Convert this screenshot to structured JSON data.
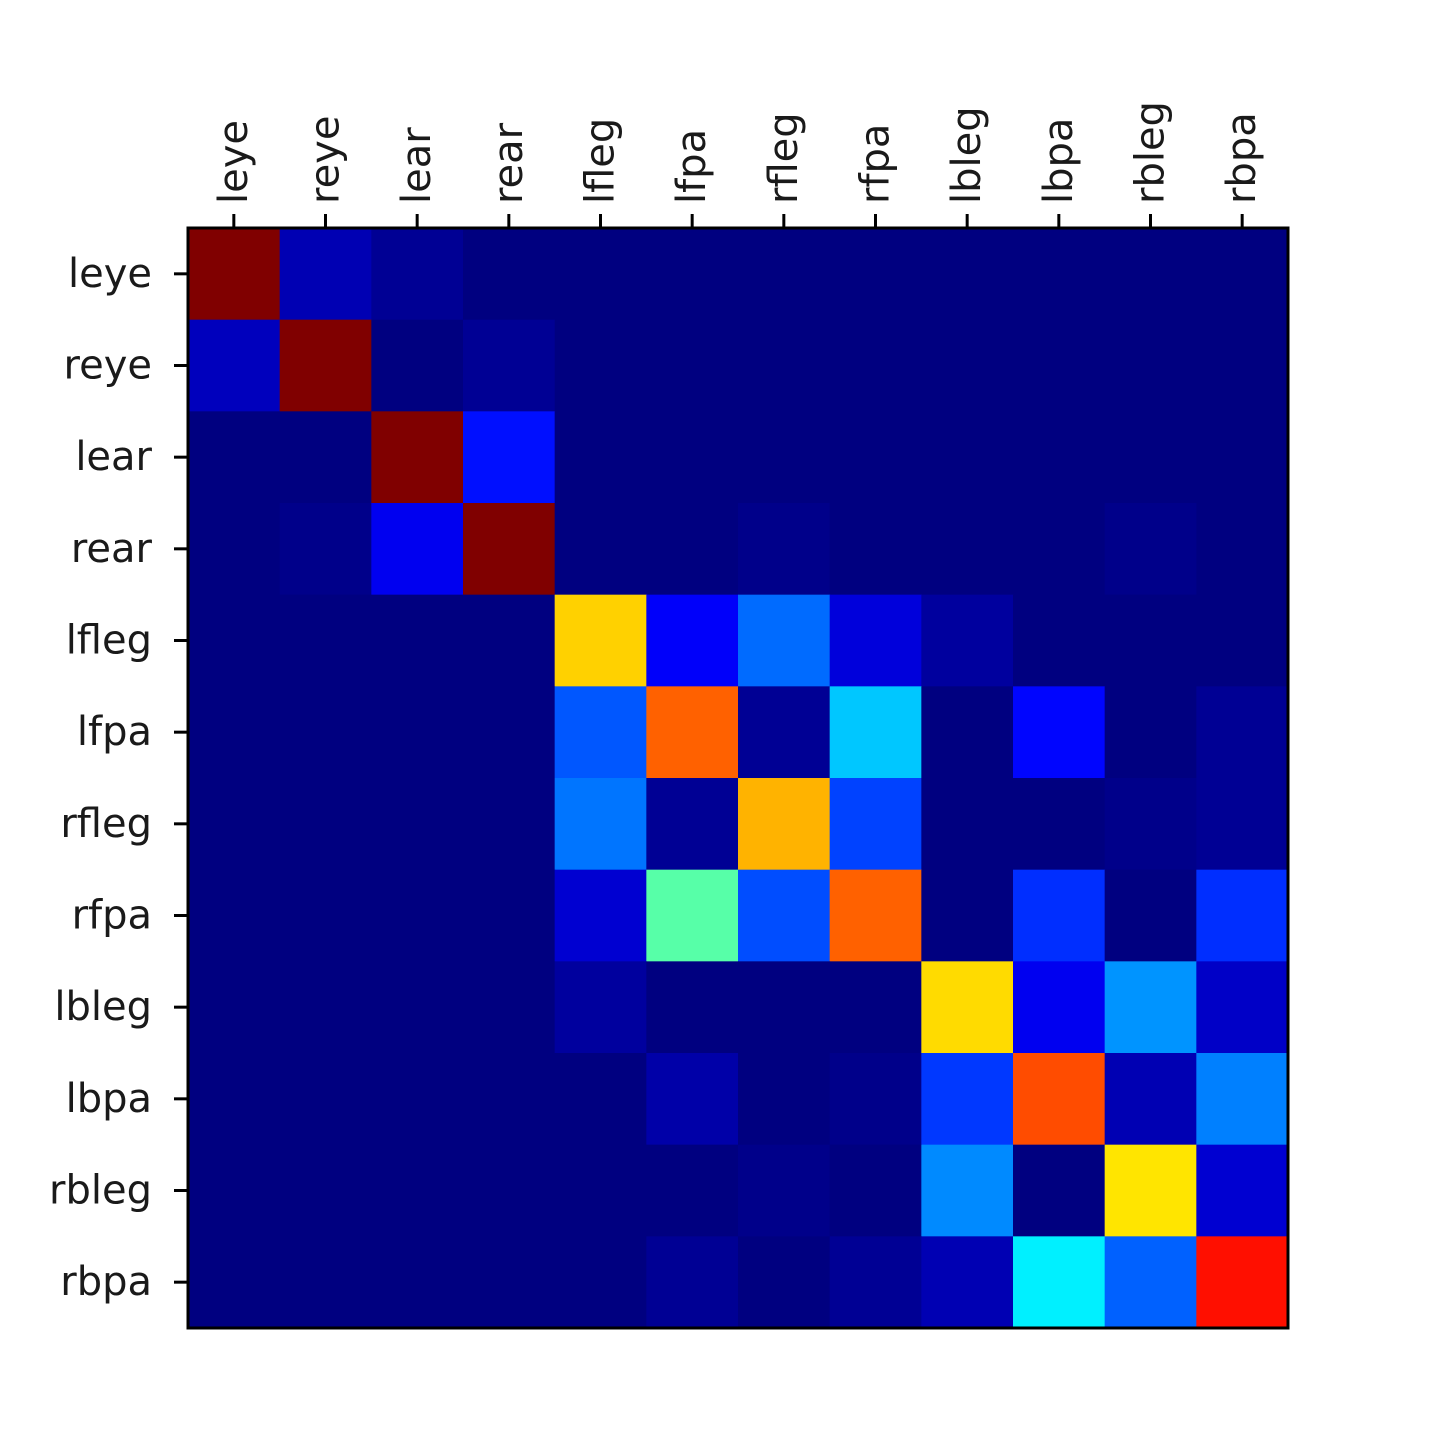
{
  "chart_data": {
    "type": "heatmap",
    "title": "",
    "xlabel": "",
    "ylabel": "",
    "colormap": "jet",
    "value_range": [
      0,
      1
    ],
    "x_axis_position": "top",
    "grid": false,
    "legend": "none",
    "x_labels": [
      "leye",
      "reye",
      "lear",
      "rear",
      "lfleg",
      "lfpa",
      "rfleg",
      "rfpa",
      "lbleg",
      "lbpa",
      "rbleg",
      "rbpa"
    ],
    "y_labels": [
      "leye",
      "reye",
      "lear",
      "rear",
      "lfleg",
      "lfpa",
      "rfleg",
      "rfpa",
      "lbleg",
      "lbpa",
      "rbleg",
      "rbpa"
    ],
    "values": [
      [
        1.0,
        0.05,
        0.02,
        0.0,
        0.0,
        0.0,
        0.0,
        0.0,
        0.0,
        0.0,
        0.0,
        0.0
      ],
      [
        0.06,
        1.0,
        0.0,
        0.02,
        0.0,
        0.0,
        0.0,
        0.0,
        0.0,
        0.0,
        0.0,
        0.0
      ],
      [
        0.0,
        0.0,
        1.0,
        0.14,
        0.0,
        0.0,
        0.0,
        0.0,
        0.0,
        0.0,
        0.0,
        0.0
      ],
      [
        0.0,
        0.01,
        0.11,
        1.0,
        0.0,
        0.0,
        0.01,
        0.0,
        0.0,
        0.0,
        0.01,
        0.0
      ],
      [
        0.0,
        0.0,
        0.0,
        0.0,
        0.67,
        0.12,
        0.23,
        0.09,
        0.03,
        0.0,
        0.0,
        0.0
      ],
      [
        0.0,
        0.0,
        0.0,
        0.0,
        0.21,
        0.78,
        0.02,
        0.32,
        0.0,
        0.13,
        0.0,
        0.02
      ],
      [
        0.0,
        0.0,
        0.0,
        0.0,
        0.24,
        0.02,
        0.7,
        0.19,
        0.0,
        0.0,
        0.01,
        0.02
      ],
      [
        0.0,
        0.0,
        0.0,
        0.0,
        0.08,
        0.46,
        0.2,
        0.78,
        0.0,
        0.17,
        0.0,
        0.17
      ],
      [
        0.0,
        0.0,
        0.0,
        0.0,
        0.03,
        0.0,
        0.0,
        0.0,
        0.66,
        0.11,
        0.27,
        0.07
      ],
      [
        0.0,
        0.0,
        0.0,
        0.0,
        0.0,
        0.04,
        0.0,
        0.01,
        0.18,
        0.8,
        0.05,
        0.25
      ],
      [
        0.0,
        0.0,
        0.0,
        0.0,
        0.0,
        0.0,
        0.01,
        0.0,
        0.26,
        0.0,
        0.65,
        0.08
      ],
      [
        0.0,
        0.0,
        0.0,
        0.0,
        0.0,
        0.02,
        0.0,
        0.02,
        0.05,
        0.36,
        0.22,
        0.86
      ]
    ]
  }
}
